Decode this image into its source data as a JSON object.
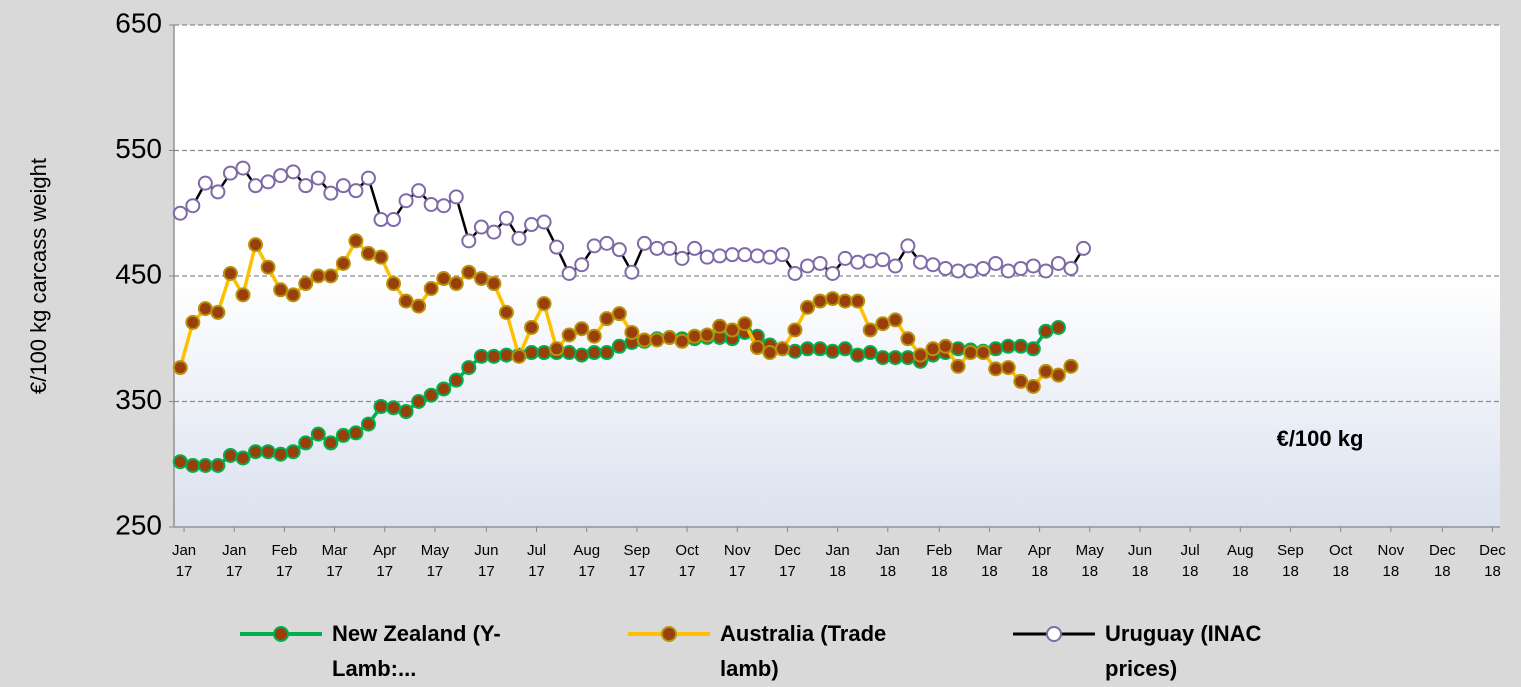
{
  "chart_data": {
    "type": "line",
    "y_label": "€/100 kg carcass weight",
    "annotation": "€/100 kg",
    "xlim": [
      -0.5,
      105.2
    ],
    "xticks": [
      {
        "value": 0.3,
        "label": "Jan 17"
      },
      {
        "value": 4.3,
        "label": "Jan 17"
      },
      {
        "value": 8.3,
        "label": "Feb 17"
      },
      {
        "value": 12.3,
        "label": "Mar 17"
      },
      {
        "value": 16.3,
        "label": "Apr 17"
      },
      {
        "value": 20.3,
        "label": "May 17"
      },
      {
        "value": 24.4,
        "label": "Jun 17"
      },
      {
        "value": 28.4,
        "label": "Jul 17"
      },
      {
        "value": 32.4,
        "label": "Aug 17"
      },
      {
        "value": 36.4,
        "label": "Sep 17"
      },
      {
        "value": 40.4,
        "label": "Oct 17"
      },
      {
        "value": 44.4,
        "label": "Nov 17"
      },
      {
        "value": 48.4,
        "label": "Dec 17"
      },
      {
        "value": 52.4,
        "label": "Jan 18"
      },
      {
        "value": 56.4,
        "label": "Jan 18"
      },
      {
        "value": 60.5,
        "label": "Feb 18"
      },
      {
        "value": 64.5,
        "label": "Mar 18"
      },
      {
        "value": 68.5,
        "label": "Apr 18"
      },
      {
        "value": 72.5,
        "label": "May 18"
      },
      {
        "value": 76.5,
        "label": "Jun 18"
      },
      {
        "value": 80.5,
        "label": "Jul 18"
      },
      {
        "value": 84.5,
        "label": "Aug 18"
      },
      {
        "value": 88.5,
        "label": "Sep 18"
      },
      {
        "value": 92.5,
        "label": "Oct 18"
      },
      {
        "value": 96.5,
        "label": "Nov 18"
      },
      {
        "value": 100.6,
        "label": "Dec 18"
      },
      {
        "value": 104.6,
        "label": "Dec 18"
      }
    ],
    "ylim": [
      250,
      650
    ],
    "yticks": [
      250,
      350,
      450,
      550,
      650
    ],
    "grid": true,
    "legend": "bottom",
    "series": [
      {
        "name": "New Zealand (Y-Lamb:...",
        "color": "#00b050",
        "marker_fill": "#993f0c",
        "marker_edge": "#00b050",
        "values": [
          302,
          299,
          299,
          299,
          307,
          305,
          310,
          310,
          308,
          310,
          317,
          324,
          317,
          323,
          325,
          332,
          346,
          345,
          342,
          350,
          355,
          360,
          367,
          377,
          386,
          386,
          387,
          387,
          389,
          389,
          389,
          389,
          387,
          389,
          389,
          394,
          397,
          398,
          400,
          401,
          400,
          400,
          401,
          401,
          400,
          405,
          402,
          395,
          392,
          390,
          392,
          392,
          390,
          392,
          387,
          389,
          385,
          385,
          385,
          382,
          387,
          389,
          392,
          391,
          390,
          392,
          394,
          394,
          392,
          406,
          409
        ]
      },
      {
        "name": "Australia (Trade lamb)",
        "color": "#ffc000",
        "marker_fill": "#993f0c",
        "marker_edge": "#b8920a",
        "values": [
          377,
          413,
          424,
          421,
          452,
          435,
          475,
          457,
          439,
          435,
          444,
          450,
          450,
          460,
          478,
          468,
          465,
          444,
          430,
          426,
          440,
          448,
          444,
          453,
          448,
          444,
          421,
          386,
          409,
          428,
          392,
          403,
          408,
          402,
          416,
          420,
          405,
          399,
          399,
          401,
          398,
          402,
          403,
          410,
          407,
          412,
          393,
          389,
          392,
          407,
          425,
          430,
          432,
          430,
          430,
          407,
          412,
          415,
          400,
          387,
          392,
          394,
          378,
          389,
          389,
          376,
          377,
          366,
          362,
          374,
          371,
          378
        ]
      },
      {
        "name": "Uruguay (INAC prices)",
        "color": "#000000",
        "marker_fill": "#ffffff",
        "marker_edge": "#7f6aa8",
        "values": [
          500,
          506,
          524,
          517,
          532,
          536,
          522,
          525,
          530,
          533,
          522,
          528,
          516,
          522,
          518,
          528,
          495,
          495,
          510,
          518,
          507,
          506,
          513,
          478,
          489,
          485,
          496,
          480,
          491,
          493,
          473,
          452,
          459,
          474,
          476,
          471,
          453,
          476,
          472,
          472,
          464,
          472,
          465,
          466,
          467,
          467,
          466,
          465,
          467,
          452,
          458,
          460,
          452,
          464,
          461,
          462,
          463,
          458,
          474,
          461,
          459,
          456,
          454,
          454,
          456,
          460,
          454,
          456,
          458,
          454,
          460,
          456,
          472
        ]
      }
    ]
  }
}
